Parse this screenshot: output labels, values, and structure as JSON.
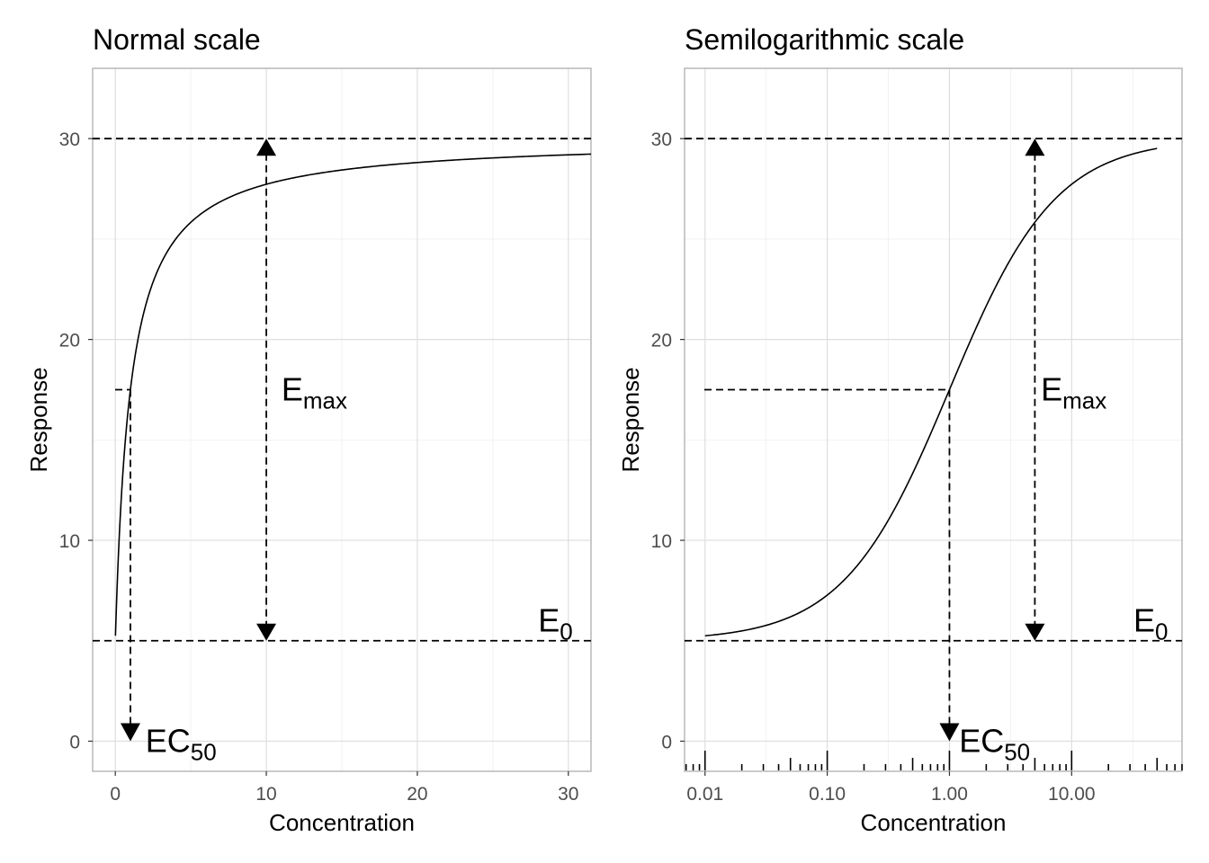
{
  "chart_data": [
    {
      "type": "line",
      "title": "Normal scale",
      "xlabel": "Concentration",
      "ylabel": "Response",
      "xscale": "linear",
      "xlim": [
        -1.5,
        31.5
      ],
      "ylim": [
        -1.5,
        33.5
      ],
      "x_ticks": [
        0,
        10,
        20,
        30
      ],
      "x_tick_labels": [
        "0",
        "10",
        "20",
        "30"
      ],
      "y_ticks": [
        0,
        10,
        20,
        30
      ],
      "y_tick_labels": [
        "0",
        "10",
        "20",
        "30"
      ],
      "grid": true,
      "model": {
        "E0": 5,
        "Emax": 25,
        "EC50": 1
      },
      "curve_x_range": [
        0.01,
        31.5
      ],
      "reference_lines": {
        "E0": 5,
        "E0_plus_Emax": 30,
        "half_effect": 17.5
      },
      "emax_arrow_x": 10,
      "ec50_arrow_x": 1,
      "annotations": [
        {
          "id": "emax",
          "text": "E",
          "sub": "max",
          "x": 11,
          "y": 17.5
        },
        {
          "id": "e0",
          "text": "E",
          "sub": "0",
          "x": 28,
          "y": 6
        },
        {
          "id": "ec50",
          "text": "EC",
          "sub": "50",
          "x": 2,
          "y": 0
        }
      ]
    },
    {
      "type": "line",
      "title": "Semilogarithmic scale",
      "xlabel": "Concentration",
      "ylabel": "Response",
      "xscale": "log10",
      "xlim": [
        0.0068,
        80
      ],
      "ylim": [
        -1.5,
        33.5
      ],
      "x_ticks": [
        0.01,
        0.1,
        1,
        10
      ],
      "x_tick_labels": [
        "0.01",
        "0.10",
        "1.00",
        "10.00"
      ],
      "y_ticks": [
        0,
        10,
        20,
        30
      ],
      "y_tick_labels": [
        "0",
        "10",
        "20",
        "30"
      ],
      "grid": true,
      "log_ticks_rug": true,
      "model": {
        "E0": 5,
        "Emax": 25,
        "EC50": 1
      },
      "curve_x_range": [
        0.01,
        50
      ],
      "reference_lines": {
        "E0": 5,
        "E0_plus_Emax": 30,
        "half_effect": 17.5
      },
      "emax_arrow_x": 5,
      "ec50_arrow_x": 1,
      "annotations": [
        {
          "id": "emax",
          "text": "E",
          "sub": "max",
          "x": 5.6,
          "y": 17.5
        },
        {
          "id": "e0",
          "text": "E",
          "sub": "0",
          "x": 32,
          "y": 6
        },
        {
          "id": "ec50",
          "text": "EC",
          "sub": "50",
          "x": 1.2,
          "y": 0
        }
      ]
    }
  ]
}
